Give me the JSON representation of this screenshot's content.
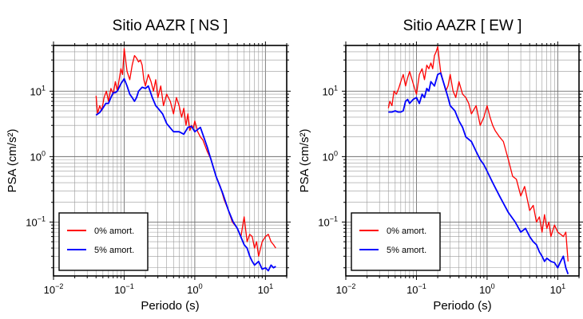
{
  "chart_data": [
    {
      "type": "line",
      "title": "Sitio AAZR [ NS ]",
      "xlabel": "Periodo (s)",
      "ylabel": "PSA (cm/s²)",
      "xscale": "log",
      "yscale": "log",
      "xlim": [
        0.01,
        20
      ],
      "ylim": [
        0.015,
        50
      ],
      "grid": true,
      "legend_position": "bottom-left",
      "xticks": [
        {
          "value": 0.01,
          "base": "10",
          "exp": "−2"
        },
        {
          "value": 0.1,
          "base": "10",
          "exp": "−1"
        },
        {
          "value": 1,
          "base": "10",
          "exp": "0"
        },
        {
          "value": 10,
          "base": "10",
          "exp": "1"
        }
      ],
      "yticks": [
        {
          "value": 0.1,
          "base": "10",
          "exp": "−1"
        },
        {
          "value": 1,
          "base": "10",
          "exp": "0"
        },
        {
          "value": 10,
          "base": "10",
          "exp": "1"
        }
      ],
      "series": [
        {
          "name": "0% amort.",
          "color": "#ff0000",
          "x": [
            0.04,
            0.042,
            0.045,
            0.048,
            0.052,
            0.056,
            0.06,
            0.065,
            0.07,
            0.075,
            0.08,
            0.085,
            0.09,
            0.095,
            0.1,
            0.105,
            0.11,
            0.12,
            0.13,
            0.14,
            0.15,
            0.16,
            0.17,
            0.18,
            0.19,
            0.2,
            0.22,
            0.24,
            0.26,
            0.28,
            0.3,
            0.33,
            0.36,
            0.4,
            0.45,
            0.5,
            0.55,
            0.6,
            0.65,
            0.7,
            0.75,
            0.8,
            0.85,
            0.9,
            0.95,
            1.0,
            1.1,
            1.2,
            1.3,
            1.5,
            1.7,
            2.0,
            2.3,
            2.6,
            3.0,
            3.4,
            4.0,
            4.5,
            5.0,
            5.5,
            6.0,
            6.5,
            7.0,
            7.5,
            8.0,
            9.0,
            10.0,
            11.0,
            12.0,
            13.0,
            14.0
          ],
          "y": [
            8.5,
            4.5,
            6,
            5,
            8,
            10,
            7,
            11,
            9,
            14,
            10,
            15,
            22,
            18,
            45,
            30,
            20,
            15,
            25,
            35,
            32,
            28,
            30,
            25,
            15,
            12,
            18,
            14,
            10,
            15,
            8,
            12,
            6,
            9,
            7,
            4.5,
            8,
            6,
            4,
            5.5,
            3,
            4.5,
            2.5,
            3,
            2.7,
            3.5,
            2.4,
            2.0,
            1.8,
            1.2,
            0.9,
            0.5,
            0.35,
            0.22,
            0.15,
            0.1,
            0.08,
            0.06,
            0.12,
            0.05,
            0.065,
            0.06,
            0.04,
            0.05,
            0.03,
            0.05,
            0.06,
            0.065,
            0.05,
            0.045,
            0.04
          ]
        },
        {
          "name": "5% amort.",
          "color": "#0000ff",
          "x": [
            0.04,
            0.045,
            0.05,
            0.055,
            0.06,
            0.065,
            0.07,
            0.075,
            0.08,
            0.09,
            0.1,
            0.11,
            0.12,
            0.13,
            0.14,
            0.15,
            0.16,
            0.18,
            0.2,
            0.22,
            0.25,
            0.28,
            0.3,
            0.35,
            0.4,
            0.5,
            0.6,
            0.7,
            0.8,
            0.9,
            1.0,
            1.2,
            1.5,
            2.0,
            2.5,
            3.0,
            3.5,
            4.0,
            5.0,
            5.5,
            6.0,
            6.5,
            7.0,
            8.0,
            9.0,
            10.0,
            11.0,
            12.0,
            13.0,
            14.0
          ],
          "y": [
            4.3,
            4.7,
            5.5,
            6.5,
            6.5,
            8,
            9.5,
            9.5,
            10,
            13,
            15.5,
            12,
            9,
            8,
            7,
            8,
            10,
            11.5,
            11,
            12,
            8,
            6,
            5.5,
            4.5,
            3.2,
            2.4,
            2.4,
            2.2,
            2.8,
            2.9,
            2.4,
            2.8,
            1.4,
            0.5,
            0.27,
            0.15,
            0.1,
            0.08,
            0.045,
            0.04,
            0.03,
            0.025,
            0.022,
            0.025,
            0.019,
            0.02,
            0.018,
            0.022,
            0.02,
            0.021
          ]
        }
      ]
    },
    {
      "type": "line",
      "title": "Sitio AAZR [ EW ]",
      "xlabel": "Periodo (s)",
      "ylabel": "PSA (cm/s²)",
      "xscale": "log",
      "yscale": "log",
      "xlim": [
        0.01,
        20
      ],
      "ylim": [
        0.015,
        50
      ],
      "grid": true,
      "legend_position": "bottom-left",
      "xticks": [
        {
          "value": 0.01,
          "base": "10",
          "exp": "−2"
        },
        {
          "value": 0.1,
          "base": "10",
          "exp": "−1"
        },
        {
          "value": 1,
          "base": "10",
          "exp": "0"
        },
        {
          "value": 10,
          "base": "10",
          "exp": "1"
        }
      ],
      "yticks": [
        {
          "value": 0.1,
          "base": "10",
          "exp": "−1"
        },
        {
          "value": 1,
          "base": "10",
          "exp": "0"
        },
        {
          "value": 10,
          "base": "10",
          "exp": "1"
        }
      ],
      "series": [
        {
          "name": "0% amort.",
          "color": "#ff0000",
          "x": [
            0.04,
            0.042,
            0.045,
            0.048,
            0.052,
            0.056,
            0.06,
            0.065,
            0.07,
            0.075,
            0.08,
            0.09,
            0.1,
            0.11,
            0.12,
            0.13,
            0.14,
            0.15,
            0.16,
            0.17,
            0.18,
            0.19,
            0.2,
            0.21,
            0.22,
            0.24,
            0.26,
            0.28,
            0.3,
            0.33,
            0.36,
            0.4,
            0.45,
            0.5,
            0.55,
            0.6,
            0.7,
            0.8,
            0.9,
            1.0,
            1.1,
            1.2,
            1.3,
            1.5,
            1.7,
            2.0,
            2.3,
            2.6,
            3.0,
            3.4,
            4.0,
            4.5,
            5.0,
            5.5,
            6.0,
            6.5,
            7.0,
            7.5,
            8.0,
            9.0,
            10.0,
            11.0,
            12.0,
            13.0,
            14.0
          ],
          "y": [
            5.5,
            7,
            6,
            10,
            9,
            11,
            14,
            18,
            12,
            16,
            20,
            13,
            9,
            18,
            22,
            15,
            25,
            22,
            27,
            22,
            35,
            40,
            48,
            30,
            20,
            14,
            10,
            12,
            18,
            10,
            8,
            14,
            9,
            8,
            6.5,
            4.5,
            6,
            3,
            4,
            6,
            4,
            3,
            2.5,
            2,
            1.7,
            0.9,
            0.5,
            0.45,
            0.25,
            0.35,
            0.15,
            0.18,
            0.1,
            0.12,
            0.07,
            0.13,
            0.08,
            0.1,
            0.06,
            0.09,
            0.07,
            0.065,
            0.06,
            0.07,
            0.025
          ]
        },
        {
          "name": "5% amort.",
          "color": "#0000ff",
          "x": [
            0.04,
            0.045,
            0.05,
            0.055,
            0.06,
            0.065,
            0.07,
            0.075,
            0.08,
            0.09,
            0.1,
            0.11,
            0.12,
            0.13,
            0.14,
            0.15,
            0.16,
            0.18,
            0.2,
            0.22,
            0.25,
            0.28,
            0.3,
            0.35,
            0.4,
            0.45,
            0.5,
            0.6,
            0.7,
            0.8,
            0.9,
            1.0,
            1.2,
            1.5,
            2.0,
            2.5,
            3.0,
            3.5,
            4.0,
            4.5,
            5.0,
            5.5,
            6.0,
            6.5,
            7.0,
            8.0,
            9.0,
            10.0,
            11.0,
            12.0,
            13.0,
            14.0
          ],
          "y": [
            4.8,
            4.8,
            5.0,
            4.8,
            4.8,
            5.0,
            7,
            7.5,
            6.5,
            7.5,
            8,
            6.5,
            9,
            8,
            11,
            10,
            14,
            12,
            18,
            19,
            12,
            8,
            6,
            5,
            3.5,
            2.8,
            2.0,
            1.7,
            1.2,
            0.9,
            0.75,
            0.6,
            0.4,
            0.25,
            0.14,
            0.1,
            0.07,
            0.08,
            0.06,
            0.05,
            0.045,
            0.035,
            0.03,
            0.025,
            0.028,
            0.025,
            0.024,
            0.02,
            0.025,
            0.03,
            0.02,
            0.016
          ]
        }
      ]
    }
  ]
}
